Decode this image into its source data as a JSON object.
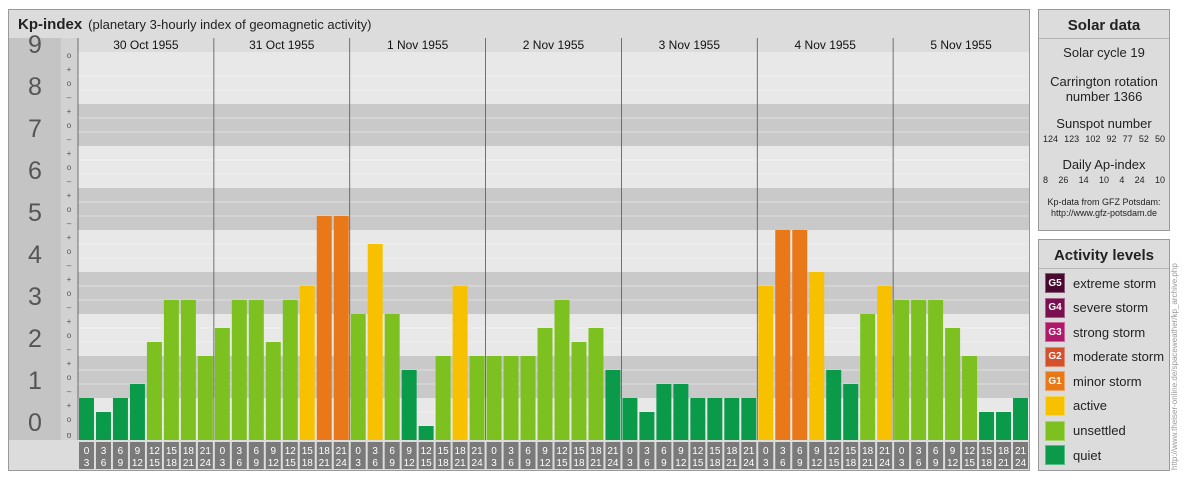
{
  "header": {
    "title": "Kp-index",
    "subtitle": "(planetary 3-hourly index of geomagnetic activity)"
  },
  "chart_data": {
    "type": "bar",
    "ylim": [
      0,
      9
    ],
    "y_ticks": [
      "0",
      "1",
      "2",
      "3",
      "4",
      "5",
      "6",
      "7",
      "8",
      "9"
    ],
    "sub_tick_marks": [
      "+",
      "o",
      "–"
    ],
    "days": [
      "30 Oct 1955",
      "31 Oct 1955",
      "1 Nov 1955",
      "2 Nov 1955",
      "3 Nov 1955",
      "4 Nov 1955",
      "5 Nov 1955"
    ],
    "interval_labels": [
      {
        "start": "0",
        "end": "3"
      },
      {
        "start": "3",
        "end": "6"
      },
      {
        "start": "6",
        "end": "9"
      },
      {
        "start": "9",
        "end": "12"
      },
      {
        "start": "12",
        "end": "15"
      },
      {
        "start": "15",
        "end": "18"
      },
      {
        "start": "18",
        "end": "21"
      },
      {
        "start": "21",
        "end": "24"
      }
    ],
    "values": [
      1.0,
      0.667,
      1.0,
      1.333,
      2.333,
      3.333,
      3.333,
      2.0,
      2.667,
      3.333,
      3.333,
      2.333,
      3.333,
      3.667,
      5.333,
      5.333,
      3.0,
      4.667,
      3.0,
      1.667,
      0.333,
      2.0,
      3.667,
      2.0,
      2.0,
      2.0,
      2.0,
      2.667,
      3.333,
      2.333,
      2.667,
      1.667,
      1.0,
      0.667,
      1.333,
      1.333,
      1.0,
      1.0,
      1.0,
      1.0,
      3.667,
      5.0,
      5.0,
      4.0,
      1.667,
      1.333,
      3.0,
      3.667,
      3.333,
      3.333,
      3.333,
      2.667,
      2.0,
      0.667,
      0.667,
      1.0
    ],
    "colors": {
      "quiet": "#0a9a4a",
      "unsettled": "#7cc11f",
      "active": "#f8c100",
      "G1": "#e87818",
      "G2": "#d4502a",
      "G3": "#b01a6a",
      "G4": "#7a1050",
      "G5": "#4a0a30"
    }
  },
  "solar": {
    "title": "Solar data",
    "cycle": "Solar cycle 19",
    "carrington_line1": "Carrington rotation",
    "carrington_line2": "number 1366",
    "sunspot_label": "Sunspot number",
    "sunspot_values": [
      "124",
      "123",
      "102",
      "92",
      "77",
      "52",
      "50"
    ],
    "ap_label": "Daily Ap-index",
    "ap_values": [
      "8",
      "26",
      "14",
      "10",
      "4",
      "24",
      "10"
    ],
    "source_line1": "Kp-data from GFZ Potsdam:",
    "source_line2": "http://www.gfz-potsdam.de"
  },
  "activity": {
    "title": "Activity levels",
    "levels": [
      {
        "badge": "G5",
        "label": "extreme storm",
        "color": "#4a0a30"
      },
      {
        "badge": "G4",
        "label": "severe storm",
        "color": "#7a1050"
      },
      {
        "badge": "G3",
        "label": "strong storm",
        "color": "#b01a6a"
      },
      {
        "badge": "G2",
        "label": "moderate storm",
        "color": "#d4502a"
      },
      {
        "badge": "G1",
        "label": "minor storm",
        "color": "#e87818"
      },
      {
        "badge": "",
        "label": "active",
        "color": "#f8c100"
      },
      {
        "badge": "",
        "label": "unsettled",
        "color": "#7cc11f"
      },
      {
        "badge": "",
        "label": "quiet",
        "color": "#0a9a4a"
      }
    ]
  },
  "credit": "http://www.theiser-online.de/spaceweather/kp_archive.php"
}
